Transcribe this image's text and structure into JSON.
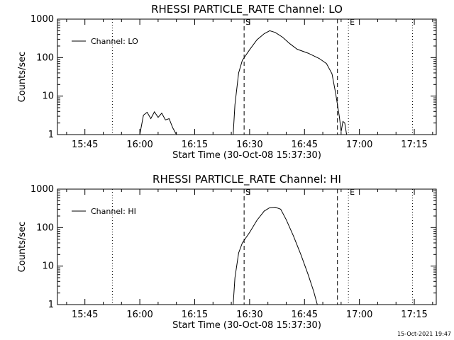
{
  "chart_data": [
    {
      "type": "line",
      "title": "RHESSI PARTICLE_RATE Channel: LO",
      "xlabel": "Start Time (30-Oct-08 15:37:30)",
      "ylabel": "Counts/sec",
      "yscale": "log",
      "ylim": [
        1,
        1000
      ],
      "xlim": [
        "15:37:30",
        "17:21:00"
      ],
      "x_ticks": [
        "15:45",
        "16:00",
        "16:15",
        "16:30",
        "16:45",
        "17:00",
        "17:15"
      ],
      "y_ticks": [
        "1",
        "10",
        "100",
        "1000"
      ],
      "grid": false,
      "legend_position": "top-left",
      "series": [
        {
          "name": "Channel: LO",
          "segments": [
            [
              [
                "16:00:00",
                1
              ],
              [
                "16:01:00",
                3.2
              ],
              [
                "16:02:00",
                3.8
              ],
              [
                "16:03:00",
                2.6
              ],
              [
                "16:04:00",
                3.9
              ],
              [
                "16:05:00",
                2.8
              ],
              [
                "16:06:00",
                3.6
              ],
              [
                "16:07:00",
                2.4
              ],
              [
                "16:08:00",
                2.6
              ],
              [
                "16:09:00",
                1.5
              ],
              [
                "16:10:00",
                1
              ]
            ],
            [
              [
                "16:25:30",
                1
              ],
              [
                "16:26:00",
                6
              ],
              [
                "16:27:00",
                40
              ],
              [
                "16:28:00",
                85
              ],
              [
                "16:30:00",
                160
              ],
              [
                "16:32:00",
                290
              ],
              [
                "16:34:00",
                420
              ],
              [
                "16:35:30",
                500
              ],
              [
                "16:37:00",
                450
              ],
              [
                "16:39:00",
                340
              ],
              [
                "16:41:00",
                230
              ],
              [
                "16:43:00",
                165
              ],
              [
                "16:46:00",
                130
              ],
              [
                "16:49:00",
                95
              ],
              [
                "16:51:00",
                70
              ],
              [
                "16:52:30",
                38
              ],
              [
                "16:53:30",
                12
              ],
              [
                "16:54:30",
                3
              ],
              [
                "16:55:00",
                1.2
              ],
              [
                "16:55:30",
                2.2
              ],
              [
                "16:56:00",
                2
              ],
              [
                "16:56:30",
                1
              ]
            ]
          ]
        }
      ],
      "vertical_markers": [
        {
          "label": "S",
          "time": "16:28:30",
          "style": "dashed"
        },
        {
          "label": "",
          "time": "16:54:00",
          "style": "dashed"
        },
        {
          "label": "E",
          "time": "16:57:00",
          "style": "dotted"
        },
        {
          "label": "",
          "time": "15:52:30",
          "style": "dotted"
        },
        {
          "label": "",
          "time": "17:14:30",
          "style": "dotted"
        }
      ]
    },
    {
      "type": "line",
      "title": "RHESSI PARTICLE_RATE Channel: HI",
      "xlabel": "Start Time (30-Oct-08 15:37:30)",
      "ylabel": "Counts/sec",
      "yscale": "log",
      "ylim": [
        1,
        1000
      ],
      "xlim": [
        "15:37:30",
        "17:21:00"
      ],
      "x_ticks": [
        "15:45",
        "16:00",
        "16:15",
        "16:30",
        "16:45",
        "17:00",
        "17:15"
      ],
      "y_ticks": [
        "1",
        "10",
        "100",
        "1000"
      ],
      "grid": false,
      "legend_position": "top-left",
      "series": [
        {
          "name": "Channel: HI",
          "segments": [
            [
              [
                "16:25:30",
                1
              ],
              [
                "16:26:00",
                5
              ],
              [
                "16:27:00",
                22
              ],
              [
                "16:28:00",
                40
              ],
              [
                "16:30:00",
                75
              ],
              [
                "16:32:00",
                155
              ],
              [
                "16:34:00",
                270
              ],
              [
                "16:35:30",
                330
              ],
              [
                "16:37:00",
                340
              ],
              [
                "16:38:30",
                300
              ],
              [
                "16:40:00",
                160
              ],
              [
                "16:42:00",
                60
              ],
              [
                "16:44:00",
                20
              ],
              [
                "16:46:00",
                6
              ],
              [
                "16:47:30",
                2.2
              ],
              [
                "16:48:30",
                1
              ]
            ]
          ]
        }
      ],
      "vertical_markers": [
        {
          "label": "S",
          "time": "16:28:30",
          "style": "dashed"
        },
        {
          "label": "",
          "time": "16:54:00",
          "style": "dashed"
        },
        {
          "label": "E",
          "time": "16:57:00",
          "style": "dotted"
        },
        {
          "label": "",
          "time": "15:52:30",
          "style": "dotted"
        },
        {
          "label": "",
          "time": "17:14:30",
          "style": "dotted"
        }
      ]
    }
  ],
  "footer": {
    "timestamp": "15-Oct-2021 19:47"
  }
}
